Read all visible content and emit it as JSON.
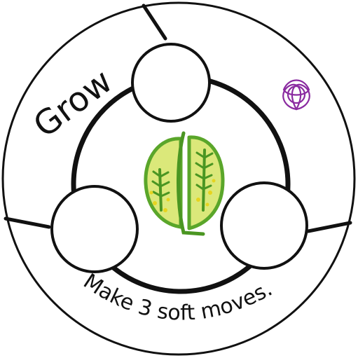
{
  "card": {
    "title": "Grow",
    "instruction": "Make 3 soft moves.",
    "symbol_icon": "triquetra-icon",
    "center_icon": "leaf-seed-icon"
  },
  "slots": [
    {
      "name": "slot-top"
    },
    {
      "name": "slot-left"
    },
    {
      "name": "slot-right"
    }
  ],
  "colors": {
    "ink": "#111111",
    "leaf_green": "#5aa62a",
    "leaf_fill": "#dbe87a",
    "leaf_dots": "#e6d41f",
    "symbol": "#8a2aa0"
  }
}
